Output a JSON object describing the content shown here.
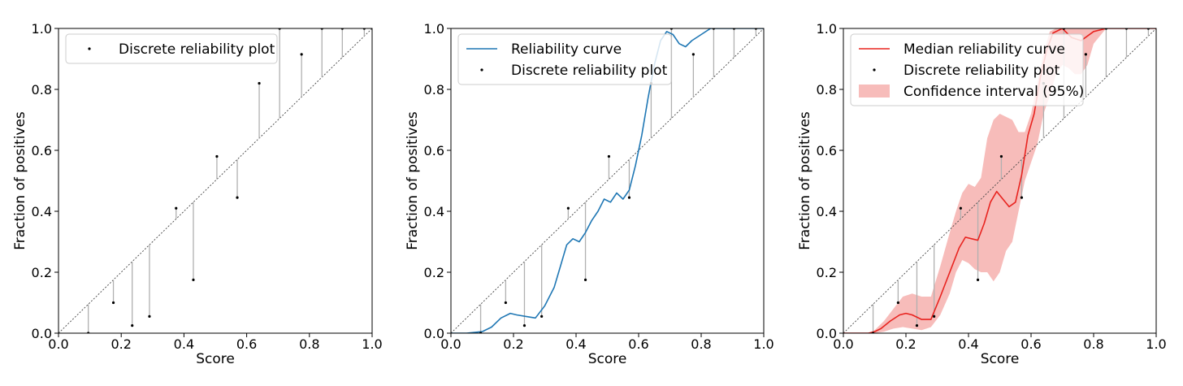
{
  "chart_data": [
    {
      "type": "scatter",
      "xlabel": "Score",
      "ylabel": "Fraction of positives",
      "xlim": [
        0,
        1
      ],
      "ylim": [
        0,
        1
      ],
      "xticks": [
        "0.0",
        "0.2",
        "0.4",
        "0.6",
        "0.8",
        "1.0"
      ],
      "yticks": [
        "0.0",
        "0.2",
        "0.4",
        "0.6",
        "0.8",
        "1.0"
      ],
      "legend_position": "top-left",
      "legend": [
        {
          "label": "Discrete reliability plot",
          "kind": "dot"
        }
      ],
      "diagonal": true,
      "discrete_points": {
        "x": [
          0.095,
          0.175,
          0.235,
          0.29,
          0.375,
          0.43,
          0.505,
          0.57,
          0.64,
          0.705,
          0.775,
          0.84,
          0.905,
          0.975
        ],
        "y": [
          0.0,
          0.1,
          0.025,
          0.055,
          0.41,
          0.175,
          0.58,
          0.445,
          0.82,
          1.0,
          0.915,
          1.0,
          1.0,
          1.0
        ]
      }
    },
    {
      "type": "line",
      "xlabel": "Score",
      "ylabel": "Fraction of positives",
      "xlim": [
        0,
        1
      ],
      "ylim": [
        0,
        1
      ],
      "xticks": [
        "0.0",
        "0.2",
        "0.4",
        "0.6",
        "0.8",
        "1.0"
      ],
      "yticks": [
        "0.0",
        "0.2",
        "0.4",
        "0.6",
        "0.8",
        "1.0"
      ],
      "legend_position": "top-left",
      "legend": [
        {
          "label": "Reliability curve",
          "kind": "line"
        },
        {
          "label": "Discrete reliability plot",
          "kind": "dot"
        }
      ],
      "diagonal": true,
      "series": [
        {
          "name": "Reliability curve",
          "color": "#1f77b4",
          "x": [
            0,
            0.05,
            0.1,
            0.13,
            0.16,
            0.19,
            0.21,
            0.24,
            0.27,
            0.3,
            0.33,
            0.35,
            0.37,
            0.39,
            0.41,
            0.43,
            0.45,
            0.47,
            0.49,
            0.51,
            0.53,
            0.55,
            0.57,
            0.59,
            0.61,
            0.63,
            0.65,
            0.67,
            0.69,
            0.71,
            0.73,
            0.75,
            0.77,
            0.8,
            0.83,
            0.86,
            0.9,
            1.0
          ],
          "y": [
            0,
            0,
            0.005,
            0.02,
            0.05,
            0.065,
            0.06,
            0.055,
            0.05,
            0.09,
            0.15,
            0.22,
            0.29,
            0.31,
            0.3,
            0.33,
            0.37,
            0.4,
            0.44,
            0.43,
            0.46,
            0.44,
            0.47,
            0.55,
            0.65,
            0.77,
            0.88,
            0.96,
            0.99,
            0.98,
            0.95,
            0.94,
            0.96,
            0.98,
            1.0,
            1.0,
            1.0,
            1.0
          ]
        }
      ],
      "discrete_points": {
        "x": [
          0.095,
          0.175,
          0.235,
          0.29,
          0.375,
          0.43,
          0.505,
          0.57,
          0.64,
          0.705,
          0.775,
          0.84,
          0.905,
          0.975
        ],
        "y": [
          0.0,
          0.1,
          0.025,
          0.055,
          0.41,
          0.175,
          0.58,
          0.445,
          0.82,
          1.0,
          0.915,
          1.0,
          1.0,
          1.0
        ]
      }
    },
    {
      "type": "area",
      "xlabel": "Score",
      "ylabel": "Fraction of positives",
      "xlim": [
        0,
        1
      ],
      "ylim": [
        0,
        1
      ],
      "xticks": [
        "0.0",
        "0.2",
        "0.4",
        "0.6",
        "0.8",
        "1.0"
      ],
      "yticks": [
        "0.0",
        "0.2",
        "0.4",
        "0.6",
        "0.8",
        "1.0"
      ],
      "legend_position": "top-left",
      "legend": [
        {
          "label": "Median reliability curve",
          "kind": "line"
        },
        {
          "label": "Discrete reliability plot",
          "kind": "dot"
        },
        {
          "label": "Confidence interval (95%)",
          "kind": "band"
        }
      ],
      "diagonal": true,
      "series": [
        {
          "name": "Median reliability curve",
          "color": "#e8231f",
          "x": [
            0,
            0.08,
            0.1,
            0.12,
            0.15,
            0.18,
            0.2,
            0.22,
            0.25,
            0.28,
            0.31,
            0.34,
            0.37,
            0.39,
            0.41,
            0.43,
            0.45,
            0.47,
            0.49,
            0.51,
            0.53,
            0.55,
            0.57,
            0.59,
            0.61,
            0.63,
            0.65,
            0.67,
            0.7,
            0.73,
            0.76,
            0.8,
            0.84,
            1.0
          ],
          "y": [
            0,
            0,
            0.005,
            0.015,
            0.04,
            0.06,
            0.065,
            0.06,
            0.045,
            0.045,
            0.12,
            0.2,
            0.28,
            0.315,
            0.31,
            0.305,
            0.36,
            0.43,
            0.465,
            0.44,
            0.415,
            0.43,
            0.52,
            0.65,
            0.72,
            0.84,
            0.93,
            0.985,
            1.0,
            0.97,
            0.96,
            0.99,
            1.0,
            1.0
          ]
        }
      ],
      "confidence_band": {
        "label": "Confidence interval (95%)",
        "color": "#f4a5a3",
        "x": [
          0,
          0.08,
          0.1,
          0.13,
          0.16,
          0.19,
          0.22,
          0.25,
          0.28,
          0.31,
          0.34,
          0.36,
          0.38,
          0.4,
          0.42,
          0.44,
          0.46,
          0.48,
          0.5,
          0.52,
          0.54,
          0.56,
          0.58,
          0.6,
          0.62,
          0.64,
          0.66,
          0.68,
          0.7,
          0.72,
          0.74,
          0.76,
          0.78,
          0.8,
          0.84,
          1.0
        ],
        "lower": [
          0,
          0,
          0,
          0.005,
          0.015,
          0.02,
          0.015,
          0.01,
          0.02,
          0.06,
          0.13,
          0.2,
          0.24,
          0.23,
          0.21,
          0.2,
          0.2,
          0.17,
          0.2,
          0.27,
          0.3,
          0.4,
          0.5,
          0.56,
          0.62,
          0.72,
          0.78,
          0.85,
          0.88,
          0.87,
          0.85,
          0.85,
          0.88,
          0.95,
          1.0,
          1.0
        ],
        "upper": [
          0,
          0,
          0.01,
          0.04,
          0.08,
          0.12,
          0.13,
          0.12,
          0.12,
          0.22,
          0.33,
          0.4,
          0.46,
          0.49,
          0.48,
          0.51,
          0.64,
          0.7,
          0.72,
          0.71,
          0.7,
          0.66,
          0.66,
          0.72,
          0.82,
          0.92,
          0.99,
          1.0,
          1.0,
          1.0,
          1.0,
          1.0,
          1.0,
          1.0,
          1.0,
          1.0
        ]
      },
      "discrete_points": {
        "x": [
          0.095,
          0.175,
          0.235,
          0.29,
          0.375,
          0.43,
          0.505,
          0.57,
          0.64,
          0.705,
          0.775,
          0.84,
          0.905,
          0.975
        ],
        "y": [
          0.0,
          0.1,
          0.025,
          0.055,
          0.41,
          0.175,
          0.58,
          0.445,
          0.82,
          1.0,
          0.915,
          1.0,
          1.0,
          1.0
        ]
      }
    }
  ]
}
